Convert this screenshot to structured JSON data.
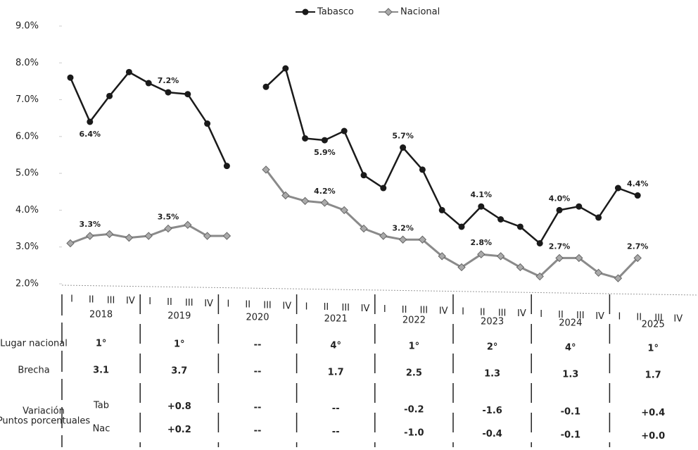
{
  "chart_data": {
    "type": "line",
    "categories": [
      "I",
      "II",
      "III",
      "IV",
      "I",
      "II",
      "III",
      "IV",
      "I",
      "II",
      "III",
      "IV",
      "I",
      "II",
      "III",
      "IV",
      "I",
      "II",
      "III",
      "IV",
      "I",
      "II",
      "III",
      "IV",
      "I",
      "II",
      "III",
      "IV",
      "I",
      "II",
      "III",
      "IV"
    ],
    "years": [
      "2018",
      "2019",
      "2020",
      "2021",
      "2022",
      "2023",
      "2024",
      "2025"
    ],
    "series": [
      {
        "name": "Tabasco",
        "color": "#1a1a1a",
        "marker": "circle",
        "values": [
          7.6,
          6.4,
          7.1,
          7.75,
          7.45,
          7.2,
          7.15,
          6.35,
          5.2,
          null,
          7.35,
          7.85,
          5.95,
          5.9,
          6.15,
          4.95,
          4.6,
          5.7,
          5.1,
          4.0,
          3.55,
          4.1,
          3.75,
          3.55,
          3.1,
          4.0,
          4.1,
          3.8,
          4.6,
          4.4,
          null,
          null
        ],
        "value_labels": [
          null,
          "6.4%",
          null,
          null,
          null,
          "7.2%",
          null,
          null,
          null,
          null,
          null,
          null,
          null,
          "5.9%",
          null,
          null,
          null,
          "5.7%",
          null,
          null,
          null,
          "4.1%",
          null,
          null,
          null,
          "4.0%",
          null,
          null,
          null,
          "4.4%",
          null,
          null
        ]
      },
      {
        "name": "Nacional",
        "color": "#8a8a8a",
        "marker": "diamond",
        "values": [
          3.1,
          3.3,
          3.35,
          3.25,
          3.3,
          3.5,
          3.6,
          3.3,
          3.3,
          null,
          5.1,
          4.4,
          4.25,
          4.2,
          4.0,
          3.5,
          3.3,
          3.2,
          3.2,
          2.75,
          2.45,
          2.8,
          2.75,
          2.45,
          2.2,
          2.7,
          2.7,
          2.3,
          2.15,
          2.7,
          null,
          null
        ],
        "value_labels": [
          null,
          "3.3%",
          null,
          null,
          null,
          "3.5%",
          null,
          null,
          null,
          null,
          null,
          null,
          null,
          "4.2%",
          null,
          null,
          null,
          "3.2%",
          null,
          null,
          null,
          "2.8%",
          null,
          null,
          null,
          "2.7%",
          null,
          null,
          null,
          "2.7%",
          null,
          null
        ]
      }
    ],
    "ylim": [
      2,
      9
    ],
    "yticks": [
      {
        "value": 2,
        "label": "2.0%"
      },
      {
        "value": 3,
        "label": "3.0%"
      },
      {
        "value": 4,
        "label": "4.0%"
      },
      {
        "value": 5,
        "label": "5.0%"
      },
      {
        "value": 6,
        "label": "6.0%"
      },
      {
        "value": 7,
        "label": "7.0%"
      },
      {
        "value": 8,
        "label": "8.0%"
      },
      {
        "value": 9,
        "label": "9.0%"
      }
    ],
    "legend": "top"
  },
  "table": {
    "rows": [
      {
        "label": "Lugar nacional",
        "values": [
          "1°",
          "1°",
          "--",
          "4°",
          "1°",
          "2°",
          "4°",
          "1°"
        ]
      },
      {
        "label": "Brecha",
        "values": [
          "3.1",
          "3.7",
          "--",
          "1.7",
          "2.5",
          "1.3",
          "1.3",
          "1.7"
        ]
      },
      {
        "label": "Variación",
        "sublabel": "Puntos porcentuales",
        "subrows": [
          {
            "label": "Tab",
            "values": [
              null,
              "+0.8",
              "--",
              "--",
              "-0.2",
              "-1.6",
              "-0.1",
              "+0.4"
            ]
          },
          {
            "label": "Nac",
            "values": [
              null,
              "+0.2",
              "--",
              "--",
              "-1.0",
              "-0.4",
              "-0.1",
              "+0.0"
            ]
          }
        ]
      }
    ]
  }
}
